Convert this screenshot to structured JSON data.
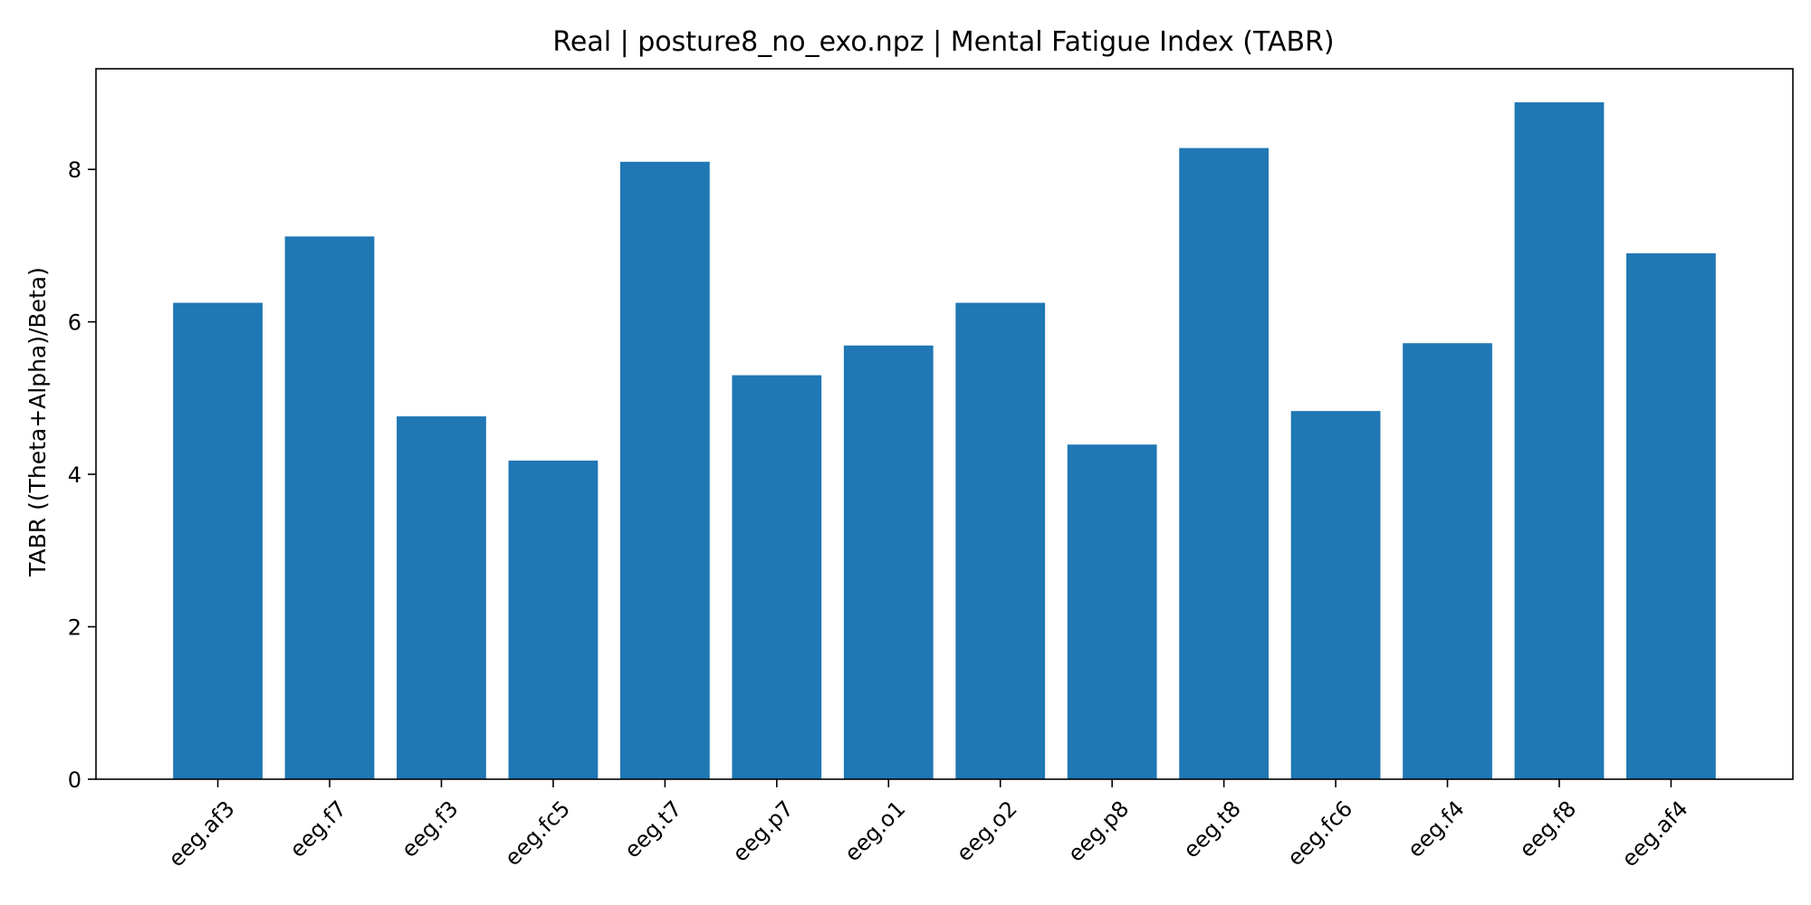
{
  "chart_data": {
    "type": "bar",
    "title": "Real | posture8_no_exo.npz | Mental Fatigue Index (TABR)",
    "xlabel": "",
    "ylabel": "TABR ((Theta+Alpha)/Beta)",
    "categories": [
      "eeg.af3",
      "eeg.f7",
      "eeg.f3",
      "eeg.fc5",
      "eeg.t7",
      "eeg.p7",
      "eeg.o1",
      "eeg.o2",
      "eeg.p8",
      "eeg.t8",
      "eeg.fc6",
      "eeg.f4",
      "eeg.f8",
      "eeg.af4"
    ],
    "values": [
      6.25,
      7.12,
      4.76,
      4.18,
      8.1,
      5.3,
      5.69,
      6.25,
      4.39,
      8.28,
      4.83,
      5.72,
      8.88,
      6.9
    ],
    "ylim": [
      0,
      9.32
    ],
    "yticks": [
      0,
      2,
      4,
      6,
      8
    ],
    "bar_color": "#1f77b4",
    "grid": false,
    "legend": "none"
  }
}
